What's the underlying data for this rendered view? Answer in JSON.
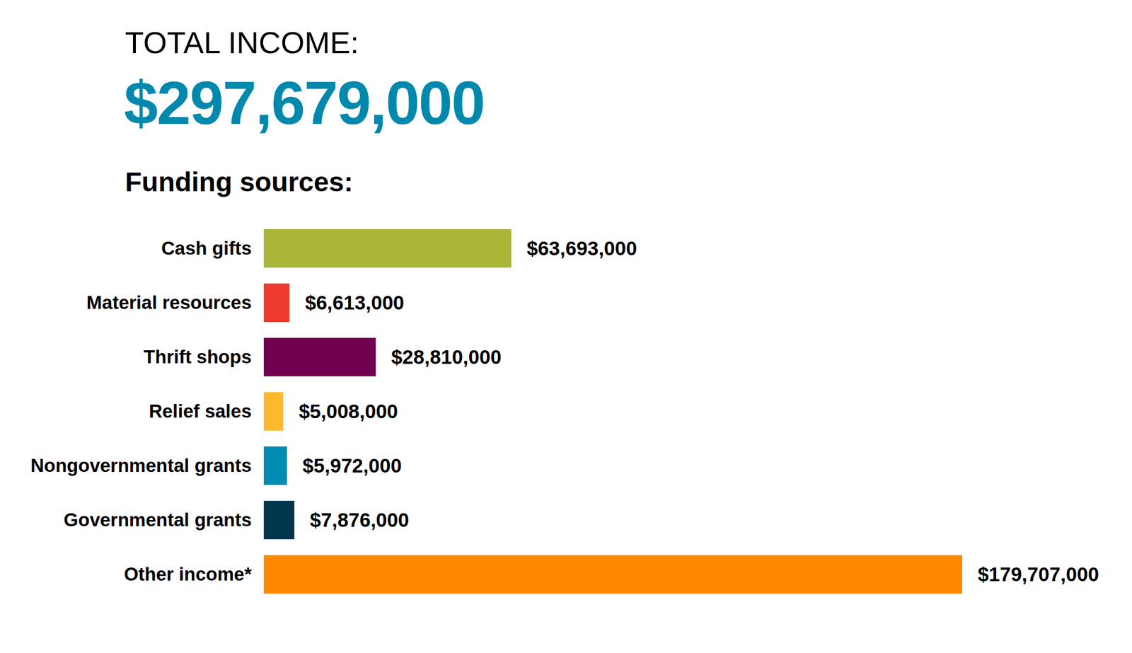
{
  "chart_data": {
    "type": "bar",
    "title": "TOTAL INCOME:",
    "subtitle": "$297,679,000",
    "annotations": [
      "Funding sources:"
    ],
    "orientation": "horizontal",
    "categories": [
      "Cash gifts",
      "Material resources",
      "Thrift shops",
      "Relief sales",
      "Nongovernmental grants",
      "Governmental grants",
      "Other income*"
    ],
    "values": [
      63693000,
      6613000,
      28810000,
      5008000,
      5972000,
      7876000,
      179707000
    ],
    "value_labels": [
      "$63,693,000",
      "$6,613,000",
      "$28,810,000",
      "$5,008,000",
      "$5,972,000",
      "$7,876,000",
      "$179,707,000"
    ],
    "colors": [
      "#a9b637",
      "#ee3a2f",
      "#720050",
      "#fdb92c",
      "#008db1",
      "#00374f",
      "#ff8800"
    ],
    "xlim": [
      0,
      179707000
    ],
    "data_labels": true,
    "tick_labels": "y",
    "grid": false
  }
}
